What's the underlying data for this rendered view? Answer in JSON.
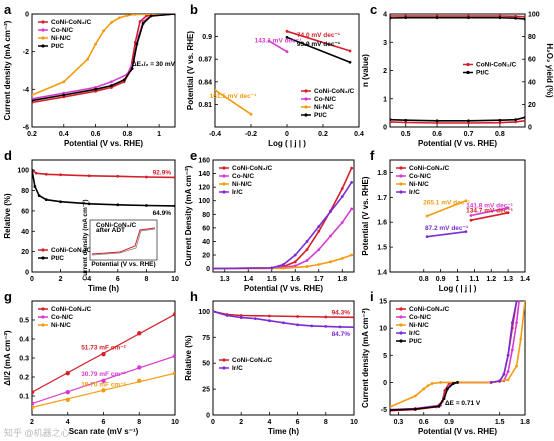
{
  "watermark": "知乎 @机器之心",
  "colors": {
    "CoNi": "#d4202b",
    "Co": "#d63bd1",
    "Ni": "#f39c12",
    "Pt": "#000000",
    "Ir": "#7b2cd6",
    "RuO": "#7b2cd6"
  },
  "chart_data": [
    {
      "panel": "a",
      "type": "line",
      "xlabel": "Potential (V vs. RHE)",
      "ylabel": "Current density (mA cm⁻²)",
      "xlim": [
        0.2,
        1.1
      ],
      "ylim": [
        -6,
        0
      ],
      "xticks": [
        0.2,
        0.4,
        0.6,
        0.8,
        1.0
      ],
      "yticks": [
        -6,
        -4,
        -2,
        0
      ],
      "legend": [
        "CoNi-CoN₃/C",
        "Co-N/C",
        "Ni-N/C",
        "Pt/C"
      ],
      "legend_position": "top-left",
      "annotation": "ΔE₁/₂ = 30 mV",
      "series": [
        {
          "name": "CoNi-CoN₃/C",
          "color": "CoNi",
          "x": [
            0.2,
            0.4,
            0.6,
            0.7,
            0.78,
            0.82,
            0.85,
            0.88,
            0.92,
            1.0,
            1.1
          ],
          "y": [
            -4.7,
            -4.4,
            -4.1,
            -3.9,
            -3.6,
            -3.0,
            -1.5,
            -0.4,
            -0.1,
            0,
            0
          ]
        },
        {
          "name": "Co-N/C",
          "color": "Co",
          "x": [
            0.2,
            0.4,
            0.6,
            0.7,
            0.8,
            0.84,
            0.87,
            0.9,
            0.95,
            1.1
          ],
          "y": [
            -4.5,
            -4.2,
            -3.9,
            -3.6,
            -3.2,
            -2.5,
            -1.2,
            -0.4,
            -0.1,
            0
          ]
        },
        {
          "name": "Ni-N/C",
          "color": "Ni",
          "x": [
            0.2,
            0.4,
            0.55,
            0.6,
            0.65,
            0.7,
            0.75,
            0.8,
            0.85,
            1.1
          ],
          "y": [
            -4.3,
            -3.6,
            -2.4,
            -1.6,
            -0.9,
            -0.45,
            -0.2,
            -0.08,
            -0.02,
            0
          ]
        },
        {
          "name": "Pt/C",
          "color": "Pt",
          "x": [
            0.2,
            0.4,
            0.6,
            0.7,
            0.78,
            0.83,
            0.86,
            0.9,
            0.95,
            1.1
          ],
          "y": [
            -4.6,
            -4.3,
            -4.0,
            -3.8,
            -3.5,
            -2.9,
            -1.6,
            -0.5,
            -0.1,
            0
          ]
        }
      ]
    },
    {
      "panel": "b",
      "type": "line",
      "xlabel": "Log ( | j | )",
      "ylabel": "Potential (V vs. RHE)",
      "xlim": [
        -0.4,
        0.4
      ],
      "ylim": [
        0.78,
        0.93
      ],
      "xticks": [
        -0.4,
        -0.2,
        0.0,
        0.2,
        0.4
      ],
      "yticks": [
        0.81,
        0.84,
        0.87,
        0.9
      ],
      "legend": [
        "CoNi-CoN₃/C",
        "Co-N/C",
        "Ni-N/C",
        "Pt/C"
      ],
      "legend_position": "bottom-right",
      "series": [
        {
          "name": "CoNi-CoN₃/C",
          "color": "CoNi",
          "label": "74.0 mV dec⁻¹",
          "x": [
            0.0,
            0.35
          ],
          "y": [
            0.907,
            0.881
          ]
        },
        {
          "name": "Pt/C",
          "color": "Pt",
          "label": "93.9 mV dec⁻¹",
          "x": [
            0.0,
            0.35
          ],
          "y": [
            0.899,
            0.866
          ]
        },
        {
          "name": "Co-N/C",
          "color": "Co",
          "label": "143.1 mV dec⁻¹",
          "x": [
            -0.1,
            0.0
          ],
          "y": [
            0.894,
            0.88
          ]
        },
        {
          "name": "Ni-N/C",
          "color": "Ni",
          "label": "161.5 mV dec⁻¹",
          "x": [
            -0.4,
            -0.2
          ],
          "y": [
            0.829,
            0.797
          ]
        }
      ]
    },
    {
      "panel": "c",
      "type": "line",
      "xlabel": "Potential (V vs. RHE)",
      "ylabel": "n (value)",
      "y2label": "H₂O₂ yield (%)",
      "xlim": [
        0.45,
        0.88
      ],
      "ylim": [
        0,
        4
      ],
      "y2lim": [
        0,
        100
      ],
      "xticks": [
        0.5,
        0.6,
        0.7,
        0.8
      ],
      "yticks": [
        0,
        1,
        2,
        3,
        4
      ],
      "y2ticks": [
        0,
        20,
        40,
        60,
        80,
        100
      ],
      "legend": [
        "CoNi-CoN₃/C",
        "Pt/C"
      ],
      "legend_position": "center-right",
      "series": [
        {
          "name": "CoNi-CoN₃/C",
          "color": "CoNi",
          "x": [
            0.45,
            0.5,
            0.6,
            0.7,
            0.8,
            0.85,
            0.88
          ],
          "y": [
            3.93,
            3.93,
            3.93,
            3.93,
            3.93,
            3.92,
            3.9
          ]
        },
        {
          "name": "Pt/C",
          "color": "Pt",
          "x": [
            0.45,
            0.5,
            0.6,
            0.7,
            0.8,
            0.85,
            0.88
          ],
          "y": [
            3.86,
            3.87,
            3.87,
            3.87,
            3.87,
            3.85,
            3.82
          ]
        },
        {
          "name": "CoNi-CoN₃/C H₂O₂",
          "color": "CoNi",
          "axis": "y2",
          "x": [
            0.45,
            0.5,
            0.6,
            0.7,
            0.8,
            0.85,
            0.88
          ],
          "y": [
            4.5,
            4.0,
            3.5,
            3.5,
            3.8,
            4.5,
            5.5
          ]
        },
        {
          "name": "Pt/C H₂O₂",
          "color": "Pt",
          "axis": "y2",
          "x": [
            0.45,
            0.5,
            0.6,
            0.7,
            0.8,
            0.85,
            0.88
          ],
          "y": [
            6.5,
            6.0,
            5.5,
            5.5,
            6.0,
            6.5,
            8.5
          ]
        }
      ]
    },
    {
      "panel": "d",
      "type": "line",
      "xlabel": "Time (h)",
      "ylabel": "Relative (%)",
      "xlim": [
        0,
        10
      ],
      "ylim": [
        0,
        110
      ],
      "xticks": [
        0,
        2,
        4,
        6,
        8,
        10
      ],
      "yticks": [
        0,
        20,
        40,
        60,
        80,
        100
      ],
      "legend": [
        "CoNi-CoN₃/C",
        "Pt/C"
      ],
      "legend_position": "bottom-left",
      "annotations": [
        "92.9%",
        "64.9%"
      ],
      "inset": {
        "legend": [
          "CoNi-CoN₃/C",
          "after ADT"
        ],
        "xlabel": "Potential (V vs. RHE)",
        "ylabel": "Current density (mA cm⁻²)"
      },
      "series": [
        {
          "name": "CoNi-CoN₃/C",
          "color": "CoNi",
          "x": [
            0,
            0.3,
            1,
            2,
            4,
            6,
            8,
            10
          ],
          "y": [
            100,
            97,
            96,
            95.5,
            94.5,
            94,
            93.3,
            92.9
          ]
        },
        {
          "name": "Pt/C",
          "color": "Pt",
          "x": [
            0,
            0.2,
            0.5,
            1,
            2,
            4,
            6,
            8,
            10
          ],
          "y": [
            100,
            84,
            75,
            71,
            69,
            67,
            66,
            65.3,
            64.9
          ]
        }
      ]
    },
    {
      "panel": "e",
      "type": "line",
      "xlabel": "Potential (V vs. RHE)",
      "ylabel": "Current Density (mA cm⁻²)",
      "xlim": [
        1.25,
        1.85
      ],
      "ylim": [
        -5,
        160
      ],
      "xticks": [
        1.3,
        1.4,
        1.5,
        1.6,
        1.7,
        1.8
      ],
      "yticks": [
        0,
        20,
        40,
        60,
        80,
        100,
        120,
        140,
        160
      ],
      "legend": [
        "CoNi-CoN₃/C",
        "Co-N/C",
        "Ni-N/C",
        "Ir/C"
      ],
      "legend_position": "top-left",
      "series": [
        {
          "name": "CoNi-CoN₃/C",
          "color": "CoNi",
          "x": [
            1.25,
            1.5,
            1.55,
            1.6,
            1.65,
            1.7,
            1.75,
            1.8,
            1.84
          ],
          "y": [
            0,
            1,
            3,
            10,
            28,
            55,
            85,
            118,
            148
          ]
        },
        {
          "name": "Co-N/C",
          "color": "Co",
          "x": [
            1.25,
            1.5,
            1.6,
            1.65,
            1.7,
            1.75,
            1.8,
            1.84
          ],
          "y": [
            0,
            0.5,
            4,
            12,
            28,
            48,
            68,
            88
          ]
        },
        {
          "name": "Ni-N/C",
          "color": "Ni",
          "x": [
            1.25,
            1.55,
            1.65,
            1.7,
            1.75,
            1.8,
            1.84
          ],
          "y": [
            0,
            0.5,
            3,
            6,
            10,
            15,
            20
          ]
        },
        {
          "name": "Ir/C",
          "color": "Ir",
          "x": [
            1.25,
            1.5,
            1.55,
            1.6,
            1.65,
            1.7,
            1.75,
            1.8,
            1.84
          ],
          "y": [
            0,
            1,
            6,
            20,
            40,
            62,
            84,
            106,
            127
          ]
        }
      ]
    },
    {
      "panel": "f",
      "type": "line",
      "xlabel": "Log ( | j | )",
      "ylabel": "Potential (V vs. RHE)",
      "xlim": [
        0.6,
        1.4
      ],
      "ylim": [
        1.4,
        1.85
      ],
      "xticks": [
        0.8,
        0.9,
        1.0,
        1.1,
        1.2,
        1.3,
        1.4
      ],
      "yticks": [
        1.4,
        1.5,
        1.6,
        1.7,
        1.8
      ],
      "legend": [
        "CoNi-CoN₃/C",
        "Co-N/C",
        "Ni-N/C",
        "Ir/C"
      ],
      "legend_position": "top-left",
      "series": [
        {
          "name": "Ni-N/C",
          "color": "Ni",
          "label": "265.1 mV dec⁻¹",
          "x": [
            0.82,
            1.05
          ],
          "y": [
            1.625,
            1.686
          ]
        },
        {
          "name": "Co-N/C",
          "color": "Co",
          "label": "141.8 mV dec⁻¹",
          "x": [
            1.08,
            1.3
          ],
          "y": [
            1.627,
            1.658
          ]
        },
        {
          "name": "CoNi-CoN₃/C",
          "color": "CoNi",
          "label": "134.7 mV dec⁻¹",
          "x": [
            1.08,
            1.3
          ],
          "y": [
            1.608,
            1.638
          ]
        },
        {
          "name": "Ir/C",
          "color": "Ir",
          "label": "87.2 mV dec⁻¹",
          "x": [
            0.82,
            1.05
          ],
          "y": [
            1.542,
            1.562
          ]
        }
      ]
    },
    {
      "panel": "g",
      "type": "scatter",
      "xlabel": "Scan rate (mV s⁻¹)",
      "ylabel": "ΔI/2 (mA cm⁻²)",
      "xlim": [
        2,
        10
      ],
      "ylim": [
        0,
        0.6
      ],
      "xticks": [
        2,
        4,
        6,
        8,
        10
      ],
      "yticks": [
        0.1,
        0.2,
        0.3,
        0.4,
        0.5
      ],
      "legend": [
        "CoNi-CoN₃/C",
        "Co-N/C",
        "Ni-N/C"
      ],
      "legend_position": "top-left",
      "series": [
        {
          "name": "CoNi-CoN₃/C",
          "color": "CoNi",
          "label": "51.73 mF cm⁻²",
          "x": [
            2,
            4,
            6,
            8,
            10
          ],
          "y": [
            0.12,
            0.22,
            0.32,
            0.43,
            0.53
          ]
        },
        {
          "name": "Co-N/C",
          "color": "Co",
          "label": "30.79 mF cm⁻²",
          "x": [
            2,
            4,
            6,
            8,
            10
          ],
          "y": [
            0.06,
            0.12,
            0.18,
            0.25,
            0.31
          ]
        },
        {
          "name": "Ni-N/C",
          "color": "Ni",
          "label": "19.70 mF cm⁻²",
          "x": [
            2,
            4,
            6,
            8,
            10
          ],
          "y": [
            0.04,
            0.08,
            0.13,
            0.18,
            0.22
          ]
        }
      ]
    },
    {
      "panel": "h",
      "type": "line",
      "xlabel": "Time (h)",
      "ylabel": "Relative (%)",
      "xlim": [
        0,
        10
      ],
      "ylim": [
        0,
        110
      ],
      "xticks": [
        0,
        2,
        4,
        6,
        8,
        10
      ],
      "yticks": [
        0,
        25,
        50,
        75,
        100
      ],
      "legend": [
        "CoNi-CoN₃/C",
        "Ir/C"
      ],
      "legend_position": "center-left",
      "annotations": [
        "94.3%",
        "84.7%"
      ],
      "series": [
        {
          "name": "CoNi-CoN₃/C",
          "color": "CoNi",
          "x": [
            0,
            1,
            2,
            4,
            6,
            8,
            10
          ],
          "y": [
            100,
            97,
            96,
            95.5,
            95,
            94.6,
            94.3
          ]
        },
        {
          "name": "Ir/C",
          "color": "Ir",
          "x": [
            0,
            1,
            2,
            3,
            4,
            5,
            6,
            7,
            8,
            9,
            10
          ],
          "y": [
            100,
            96,
            94,
            93,
            91,
            89,
            87,
            86,
            85.5,
            85,
            84.7
          ]
        }
      ]
    },
    {
      "panel": "i",
      "type": "line",
      "xlabel": "Potential (V vs. RHE)",
      "ylabel": "Current density (mA cm⁻²)",
      "xlim": [
        0.2,
        1.8
      ],
      "ylim": [
        -6,
        15
      ],
      "xticks": [
        0.3,
        0.6,
        0.9,
        1.5,
        1.8
      ],
      "yticks": [
        -5,
        0,
        5,
        10,
        15
      ],
      "legend": [
        "CoNi-CoN₃/C",
        "Co-N/C",
        "Ni-N/C",
        "Ir/C",
        "Pt/C"
      ],
      "legend_position": "top-left",
      "annotation": "ΔE = 0.71 V",
      "series": [
        {
          "name": "CoNi-CoN₃/C",
          "color": "CoNi",
          "x": [
            0.2,
            0.5,
            0.75,
            0.82,
            0.85,
            0.9,
            1.0,
            1.4,
            1.5,
            1.55,
            1.6,
            1.65,
            1.7
          ],
          "y": [
            -5.2,
            -5.0,
            -4.5,
            -3.5,
            -1.5,
            -0.2,
            0,
            0,
            0.2,
            1.5,
            5,
            10,
            15
          ]
        },
        {
          "name": "Co-N/C",
          "color": "Co",
          "x": [
            0.2,
            0.5,
            0.8,
            0.85,
            0.9,
            1.0,
            1.4,
            1.55,
            1.6,
            1.65,
            1.7,
            1.73
          ],
          "y": [
            -5.0,
            -4.8,
            -4.2,
            -2.5,
            -0.6,
            0,
            0,
            0.3,
            2,
            6,
            11,
            15
          ]
        },
        {
          "name": "Ni-N/C",
          "color": "Ni",
          "x": [
            0.2,
            0.5,
            0.6,
            0.65,
            0.7,
            0.8,
            1.4,
            1.6,
            1.7,
            1.75,
            1.8
          ],
          "y": [
            -4.5,
            -2.5,
            -1.2,
            -0.6,
            -0.2,
            0,
            0,
            0.5,
            3,
            8,
            15
          ]
        },
        {
          "name": "Ir/C",
          "color": "Ir",
          "x": [
            1.4,
            1.5,
            1.55,
            1.6,
            1.65,
            1.7
          ],
          "y": [
            0,
            0.3,
            1.5,
            5,
            11,
            15
          ]
        },
        {
          "name": "Pt/C",
          "color": "Pt",
          "x": [
            0.2,
            0.5,
            0.78,
            0.84,
            0.88,
            0.95,
            1.0
          ],
          "y": [
            -5.1,
            -4.9,
            -4.4,
            -3.0,
            -1.2,
            -0.2,
            0
          ]
        }
      ]
    }
  ]
}
